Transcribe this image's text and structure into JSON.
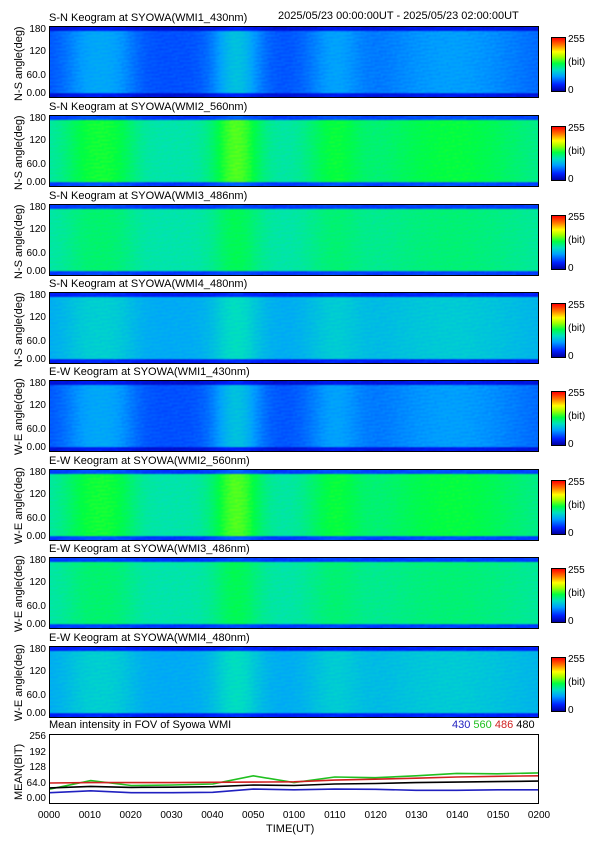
{
  "header": {
    "date_range": "2025/05/23 00:00:00UT - 2025/05/23 02:00:00UT"
  },
  "panels": [
    {
      "title": "S-N Keogram at SYOWA(WMI1_430nm)",
      "ylabel": "N-S angle(deg)",
      "base": 0.18,
      "bright": 0.1
    },
    {
      "title": "S-N Keogram at SYOWA(WMI2_560nm)",
      "ylabel": "N-S angle(deg)",
      "base": 0.42,
      "bright": 0.1
    },
    {
      "title": "S-N Keogram at SYOWA(WMI3_486nm)",
      "ylabel": "N-S angle(deg)",
      "base": 0.42,
      "bright": 0.05
    },
    {
      "title": "S-N Keogram at SYOWA(WMI4_480nm)",
      "ylabel": "N-S angle(deg)",
      "base": 0.3,
      "bright": 0.06
    },
    {
      "title": "E-W Keogram at SYOWA(WMI1_430nm)",
      "ylabel": "W-E angle(deg)",
      "base": 0.18,
      "bright": 0.1
    },
    {
      "title": "E-W Keogram at SYOWA(WMI2_560nm)",
      "ylabel": "W-E angle(deg)",
      "base": 0.42,
      "bright": 0.1
    },
    {
      "title": "E-W Keogram at SYOWA(WMI3_486nm)",
      "ylabel": "W-E angle(deg)",
      "base": 0.42,
      "bright": 0.05
    },
    {
      "title": "E-W Keogram at SYOWA(WMI4_480nm)",
      "ylabel": "W-E angle(deg)",
      "base": 0.3,
      "bright": 0.06
    }
  ],
  "panel_yticks": [
    "180",
    "120",
    "60.0",
    "0.00"
  ],
  "colorbar": {
    "max": "255",
    "unit": "(bit)",
    "min": "0"
  },
  "mean": {
    "title": "Mean intensity in FOV of Syowa WMI",
    "ylabel": "MEAN(BIT)",
    "yticks": [
      "256",
      "192",
      "128",
      "64.0",
      "0.00"
    ],
    "legend": [
      {
        "label": "430",
        "color": "#2020c0"
      },
      {
        "label": "560",
        "color": "#20c020"
      },
      {
        "label": "486",
        "color": "#d02020"
      },
      {
        "label": "480",
        "color": "#000000"
      }
    ]
  },
  "xaxis": {
    "label": "TIME(UT)",
    "ticks": [
      "0000",
      "0010",
      "0020",
      "0030",
      "0040",
      "0050",
      "0100",
      "0110",
      "0120",
      "0130",
      "0140",
      "0150",
      "0200"
    ]
  },
  "chart_data": {
    "type": "line",
    "title": "Mean intensity in FOV of Syowa WMI",
    "xlabel": "TIME(UT)",
    "ylabel": "MEAN(BIT)",
    "ylim": [
      0,
      256
    ],
    "x": [
      "0000",
      "0010",
      "0020",
      "0030",
      "0040",
      "0050",
      "0100",
      "0110",
      "0120",
      "0130",
      "0140",
      "0150",
      "0200"
    ],
    "series": [
      {
        "name": "430",
        "color": "#2020c0",
        "values": [
          30,
          38,
          30,
          30,
          32,
          45,
          42,
          45,
          44,
          40,
          40,
          42,
          42
        ]
      },
      {
        "name": "560",
        "color": "#20c020",
        "values": [
          45,
          80,
          60,
          62,
          66,
          100,
          72,
          95,
          92,
          100,
          110,
          108,
          112
        ]
      },
      {
        "name": "486",
        "color": "#d02020",
        "values": [
          70,
          72,
          72,
          72,
          73,
          74,
          75,
          82,
          86,
          90,
          95,
          98,
          100
        ]
      },
      {
        "name": "480",
        "color": "#000000",
        "values": [
          50,
          56,
          52,
          53,
          55,
          62,
          60,
          66,
          68,
          72,
          74,
          76,
          78
        ]
      }
    ]
  }
}
